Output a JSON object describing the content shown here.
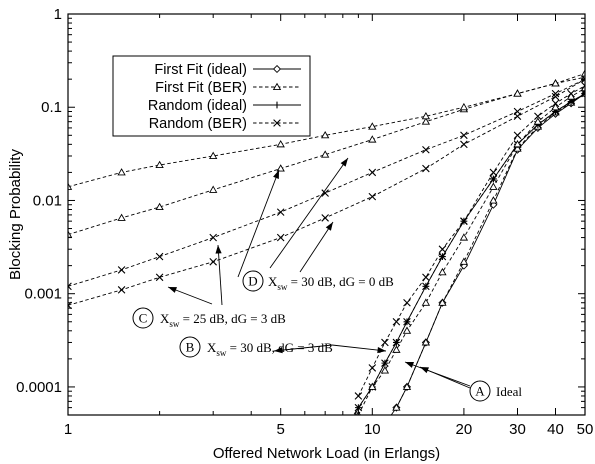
{
  "chart_data": {
    "type": "line",
    "xlabel": "Offered Network Load (in Erlangs)",
    "ylabel": "Blocking Probability",
    "xscale": "log",
    "yscale": "log",
    "xlim": [
      1,
      50
    ],
    "ylim": [
      5e-05,
      1
    ],
    "x_ticks": [
      1,
      5,
      10,
      20,
      30,
      40,
      50
    ],
    "x_tick_labels": [
      "1",
      "5",
      "10",
      "20",
      "30",
      "40",
      "50"
    ],
    "y_ticks": [
      0.0001,
      0.001,
      0.01,
      0.1,
      1
    ],
    "y_tick_labels": [
      "0.0001",
      "0.001",
      "0.01",
      "0.1",
      "1"
    ],
    "grid": false,
    "legend_position": "top-left",
    "legend": [
      {
        "label": "First Fit (ideal)",
        "marker": "diamond",
        "dash": "solid"
      },
      {
        "label": "First Fit (BER)",
        "marker": "triangle",
        "dash": "dashed"
      },
      {
        "label": "Random (ideal)",
        "marker": "plus",
        "dash": "solid"
      },
      {
        "label": "Random (BER)",
        "marker": "cross",
        "dash": "dashed"
      }
    ],
    "series": [
      {
        "name": "First Fit (ideal)",
        "case": "A",
        "x": [
          11,
          12,
          13,
          15,
          17,
          20,
          25,
          30,
          35,
          40,
          45,
          50
        ],
        "y": [
          4e-05,
          6e-05,
          0.0001,
          0.0003,
          0.0008,
          0.002,
          0.009,
          0.035,
          0.06,
          0.085,
          0.11,
          0.14
        ]
      },
      {
        "name": "First Fit (BER)",
        "case": "A",
        "x": [
          12,
          13,
          15,
          17,
          20,
          25,
          30,
          35,
          40,
          45,
          50
        ],
        "y": [
          6e-05,
          0.0001,
          0.0003,
          0.0008,
          0.0022,
          0.01,
          0.036,
          0.062,
          0.088,
          0.112,
          0.14
        ]
      },
      {
        "name": "Random (ideal)",
        "case": "A",
        "x": [
          8.5,
          9,
          10,
          11,
          12,
          13,
          15,
          17,
          20,
          25,
          30,
          35,
          40,
          45,
          50
        ],
        "y": [
          4e-05,
          6e-05,
          0.0001,
          0.00018,
          0.0003,
          0.0005,
          0.0012,
          0.0025,
          0.006,
          0.017,
          0.04,
          0.065,
          0.09,
          0.115,
          0.14
        ]
      },
      {
        "name": "Random (BER)",
        "case": "A",
        "x": [
          8.5,
          9,
          10,
          11,
          12,
          13,
          15,
          17,
          20,
          25,
          30,
          35,
          40,
          45,
          50
        ],
        "y": [
          4.5e-05,
          6e-05,
          0.0001,
          0.00018,
          0.0003,
          0.0005,
          0.0012,
          0.0025,
          0.006,
          0.017,
          0.04,
          0.065,
          0.09,
          0.115,
          0.14
        ]
      },
      {
        "name": "First Fit (BER)",
        "case": "B",
        "x": [
          9,
          10,
          11,
          12,
          13,
          15,
          17,
          20,
          25,
          30,
          35,
          40,
          45,
          50
        ],
        "y": [
          5e-05,
          0.0001,
          0.00015,
          0.00025,
          0.0004,
          0.0008,
          0.0017,
          0.004,
          0.014,
          0.04,
          0.07,
          0.1,
          0.13,
          0.16
        ]
      },
      {
        "name": "Random (BER)",
        "case": "B",
        "x": [
          9,
          10,
          11,
          12,
          13,
          15,
          17,
          20,
          25,
          30,
          35,
          40,
          45,
          50
        ],
        "y": [
          8e-05,
          0.00016,
          0.0003,
          0.0005,
          0.0008,
          0.0015,
          0.003,
          0.006,
          0.02,
          0.05,
          0.08,
          0.11,
          0.14,
          0.17
        ]
      },
      {
        "name": "First Fit (BER)",
        "case": "C",
        "x": [
          1,
          1.5,
          2,
          3,
          5,
          7,
          10,
          15,
          20,
          30,
          40,
          50
        ],
        "y": [
          0.0043,
          0.0065,
          0.0085,
          0.013,
          0.022,
          0.031,
          0.045,
          0.07,
          0.095,
          0.14,
          0.18,
          0.21
        ]
      },
      {
        "name": "Random (BER)",
        "case": "C",
        "x": [
          1,
          1.5,
          2,
          3,
          5,
          7,
          10,
          15,
          20,
          30,
          40,
          50
        ],
        "y": [
          0.0012,
          0.0018,
          0.0025,
          0.004,
          0.0075,
          0.012,
          0.02,
          0.035,
          0.05,
          0.09,
          0.14,
          0.2
        ]
      },
      {
        "name": "First Fit (BER)",
        "case": "D",
        "x": [
          1,
          1.5,
          2,
          3,
          5,
          7,
          10,
          15,
          20,
          30,
          40,
          50
        ],
        "y": [
          0.014,
          0.02,
          0.024,
          0.03,
          0.04,
          0.05,
          0.062,
          0.08,
          0.1,
          0.14,
          0.18,
          0.23
        ]
      },
      {
        "name": "Random (BER)",
        "case": "D",
        "x": [
          1,
          1.5,
          2,
          3,
          5,
          7,
          10,
          15,
          20,
          30,
          40,
          50
        ],
        "y": [
          0.00075,
          0.0011,
          0.0015,
          0.0022,
          0.004,
          0.0065,
          0.011,
          0.022,
          0.04,
          0.08,
          0.13,
          0.2
        ]
      }
    ],
    "annotations": [
      {
        "letter": "A",
        "text": "Ideal"
      },
      {
        "letter": "B",
        "text": "X_sw = 30 dB, dG = 3 dB"
      },
      {
        "letter": "C",
        "text": "X_sw = 25 dB, dG = 3 dB"
      },
      {
        "letter": "D",
        "text": "X_sw = 30 dB, dG = 0 dB"
      }
    ]
  }
}
